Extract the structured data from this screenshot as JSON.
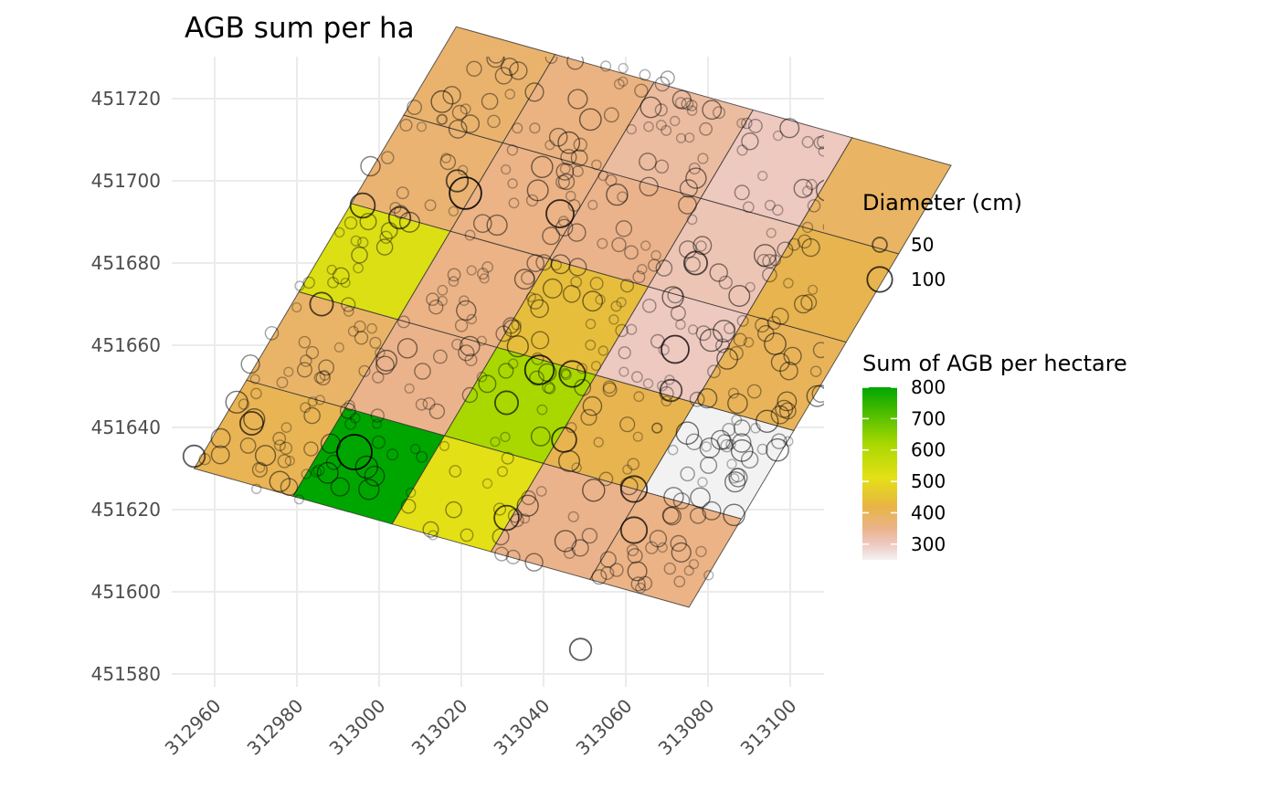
{
  "chart_data": {
    "type": "map",
    "title": "AGB sum per ha",
    "xlabel": "",
    "ylabel": "",
    "xlim": [
      312955,
      313108
    ],
    "ylim": [
      451577,
      451731
    ],
    "x_ticks": [
      312960,
      312980,
      313000,
      313020,
      313040,
      313060,
      313080,
      313100
    ],
    "y_ticks": [
      451580,
      451600,
      451620,
      451640,
      451660,
      451680,
      451700,
      451720
    ],
    "x_tick_labels": [
      "312960",
      "312980",
      "313000",
      "313020",
      "313040",
      "313060",
      "313080",
      "313100"
    ],
    "y_tick_labels": [
      "451580",
      "451600",
      "451620",
      "451640",
      "451660",
      "451680",
      "451700",
      "451720"
    ],
    "grid": true,
    "plot_grid": {
      "origin": [
        312955,
        451630
      ],
      "u_direction": [
        0.963,
        -0.27
      ],
      "v_direction": [
        0.51,
        0.86
      ],
      "cell_size_m": 25,
      "n_u": 5,
      "n_v": 5
    },
    "cells": [
      {
        "i": 0,
        "j": 0,
        "agb": 405
      },
      {
        "i": 1,
        "j": 0,
        "agb": 800
      },
      {
        "i": 2,
        "j": 0,
        "agb": 510
      },
      {
        "i": 3,
        "j": 0,
        "agb": 350
      },
      {
        "i": 4,
        "j": 0,
        "agb": 355
      },
      {
        "i": 0,
        "j": 1,
        "agb": 385
      },
      {
        "i": 1,
        "j": 1,
        "agb": 350
      },
      {
        "i": 2,
        "j": 1,
        "agb": 620
      },
      {
        "i": 3,
        "j": 1,
        "agb": 410
      },
      {
        "i": 4,
        "j": 1,
        "agb": 250
      },
      {
        "i": 0,
        "j": 2,
        "agb": 525
      },
      {
        "i": 1,
        "j": 2,
        "agb": 355
      },
      {
        "i": 2,
        "j": 2,
        "agb": 440
      },
      {
        "i": 3,
        "j": 2,
        "agb": 300
      },
      {
        "i": 4,
        "j": 2,
        "agb": 400
      },
      {
        "i": 0,
        "j": 3,
        "agb": 375
      },
      {
        "i": 1,
        "j": 3,
        "agb": 355
      },
      {
        "i": 2,
        "j": 3,
        "agb": 350
      },
      {
        "i": 3,
        "j": 3,
        "agb": 310
      },
      {
        "i": 4,
        "j": 3,
        "agb": 410
      },
      {
        "i": 0,
        "j": 4,
        "agb": 380
      },
      {
        "i": 1,
        "j": 4,
        "agb": 360
      },
      {
        "i": 2,
        "j": 4,
        "agb": 330
      },
      {
        "i": 3,
        "j": 4,
        "agb": 300
      },
      {
        "i": 4,
        "j": 4,
        "agb": 390
      }
    ],
    "large_trees": [
      {
        "x": 312994,
        "y": 451634,
        "d": 100
      },
      {
        "x": 313021,
        "y": 451697,
        "d": 90
      },
      {
        "x": 313039,
        "y": 451654,
        "d": 80
      },
      {
        "x": 313047,
        "y": 451653,
        "d": 70
      },
      {
        "x": 313072,
        "y": 451659,
        "d": 75
      },
      {
        "x": 313062,
        "y": 451625,
        "d": 70
      },
      {
        "x": 313062,
        "y": 451615,
        "d": 70
      },
      {
        "x": 313045,
        "y": 451637,
        "d": 65
      },
      {
        "x": 313031,
        "y": 451646,
        "d": 60
      },
      {
        "x": 313044,
        "y": 451692,
        "d": 75
      },
      {
        "x": 312996,
        "y": 451694,
        "d": 65
      },
      {
        "x": 312986,
        "y": 451670,
        "d": 60
      },
      {
        "x": 312969,
        "y": 451641,
        "d": 60
      },
      {
        "x": 312955,
        "y": 451633,
        "d": 55
      },
      {
        "x": 313077,
        "y": 451680,
        "d": 60
      },
      {
        "x": 313019,
        "y": 451700,
        "d": 55
      },
      {
        "x": 313031,
        "y": 451618,
        "d": 65
      },
      {
        "x": 313049,
        "y": 451586,
        "d": 55
      },
      {
        "x": 313005,
        "y": 451691,
        "d": 55
      },
      {
        "x": 313071,
        "y": 451649,
        "d": 55
      }
    ],
    "legend": {
      "size_title": "Diameter (cm)",
      "size_entries": [
        {
          "label": "50",
          "d": 50
        },
        {
          "label": "100",
          "d": 100
        }
      ],
      "fill_title": "Sum of AGB per hectare",
      "fill_ticks": [
        300,
        400,
        500,
        600,
        700,
        800
      ],
      "fill_tick_labels": [
        "300",
        "400",
        "500",
        "600",
        "700",
        "800"
      ],
      "fill_range": [
        250,
        800
      ],
      "fill_stops": [
        {
          "value": 250,
          "color": "#f2f2f2"
        },
        {
          "value": 300,
          "color": "#eec9c0"
        },
        {
          "value": 350,
          "color": "#ebb38b"
        },
        {
          "value": 420,
          "color": "#e8b445"
        },
        {
          "value": 510,
          "color": "#e4e016"
        },
        {
          "value": 620,
          "color": "#a8d800"
        },
        {
          "value": 800,
          "color": "#00a600"
        }
      ],
      "placement": "right"
    }
  }
}
